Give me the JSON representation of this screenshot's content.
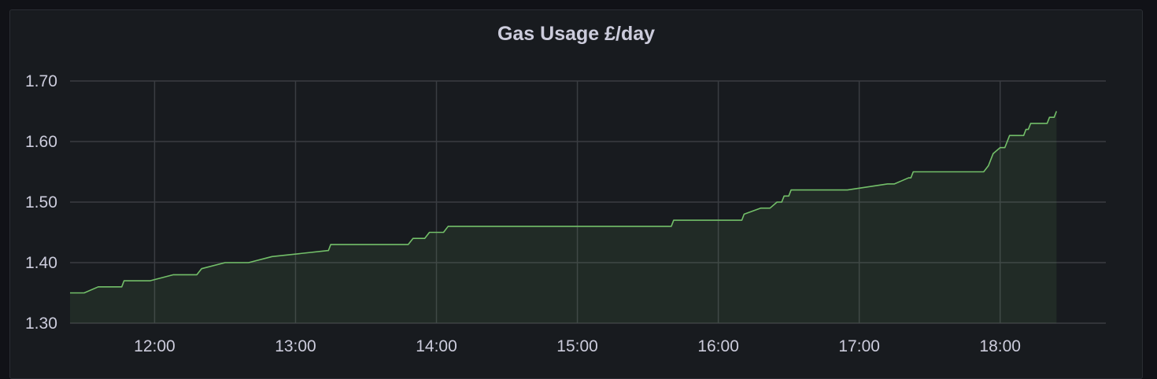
{
  "panel": {
    "title": "Gas Usage £/day"
  },
  "colors": {
    "background": "#111217",
    "panel": "#181b1f",
    "grid": "#3a3d42",
    "line": "#73bf69",
    "fill": "#73bf69",
    "text": "#ccccdc"
  },
  "chart_data": {
    "type": "area",
    "title": "Gas Usage £/day",
    "xlabel": "",
    "ylabel": "",
    "grid": true,
    "x_ticks": [
      "12:00",
      "13:00",
      "14:00",
      "15:00",
      "16:00",
      "17:00",
      "18:00"
    ],
    "y_ticks": [
      "1.30",
      "1.40",
      "1.50",
      "1.60",
      "1.70"
    ],
    "xlim": [
      "11:24",
      "18:45"
    ],
    "ylim": [
      1.3,
      1.7
    ],
    "series": [
      {
        "color": "#73bf69",
        "step": true,
        "points": [
          [
            "11:24",
            1.35
          ],
          [
            "11:30",
            1.35
          ],
          [
            "11:36",
            1.36
          ],
          [
            "11:46",
            1.36
          ],
          [
            "11:47",
            1.37
          ],
          [
            "11:58",
            1.37
          ],
          [
            "12:08",
            1.38
          ],
          [
            "12:18",
            1.38
          ],
          [
            "12:20",
            1.39
          ],
          [
            "12:30",
            1.4
          ],
          [
            "12:40",
            1.4
          ],
          [
            "12:50",
            1.41
          ],
          [
            "13:14",
            1.42
          ],
          [
            "13:15",
            1.43
          ],
          [
            "13:48",
            1.43
          ],
          [
            "13:50",
            1.44
          ],
          [
            "13:55",
            1.44
          ],
          [
            "13:57",
            1.45
          ],
          [
            "14:03",
            1.45
          ],
          [
            "14:05",
            1.46
          ],
          [
            "15:40",
            1.46
          ],
          [
            "15:41",
            1.47
          ],
          [
            "16:10",
            1.47
          ],
          [
            "16:11",
            1.48
          ],
          [
            "16:18",
            1.49
          ],
          [
            "16:22",
            1.49
          ],
          [
            "16:25",
            1.5
          ],
          [
            "16:27",
            1.5
          ],
          [
            "16:28",
            1.51
          ],
          [
            "16:30",
            1.51
          ],
          [
            "16:31",
            1.52
          ],
          [
            "16:55",
            1.52
          ],
          [
            "17:12",
            1.53
          ],
          [
            "17:15",
            1.53
          ],
          [
            "17:21",
            1.54
          ],
          [
            "17:22",
            1.54
          ],
          [
            "17:23",
            1.55
          ],
          [
            "17:53",
            1.55
          ],
          [
            "17:55",
            1.56
          ],
          [
            "17:56",
            1.57
          ],
          [
            "17:57",
            1.58
          ],
          [
            "18:00",
            1.59
          ],
          [
            "18:02",
            1.59
          ],
          [
            "18:03",
            1.6
          ],
          [
            "18:04",
            1.61
          ],
          [
            "18:10",
            1.61
          ],
          [
            "18:11",
            1.62
          ],
          [
            "18:12",
            1.62
          ],
          [
            "18:13",
            1.63
          ],
          [
            "18:20",
            1.63
          ],
          [
            "18:21",
            1.64
          ],
          [
            "18:23",
            1.64
          ],
          [
            "18:24",
            1.65
          ]
        ]
      }
    ]
  }
}
